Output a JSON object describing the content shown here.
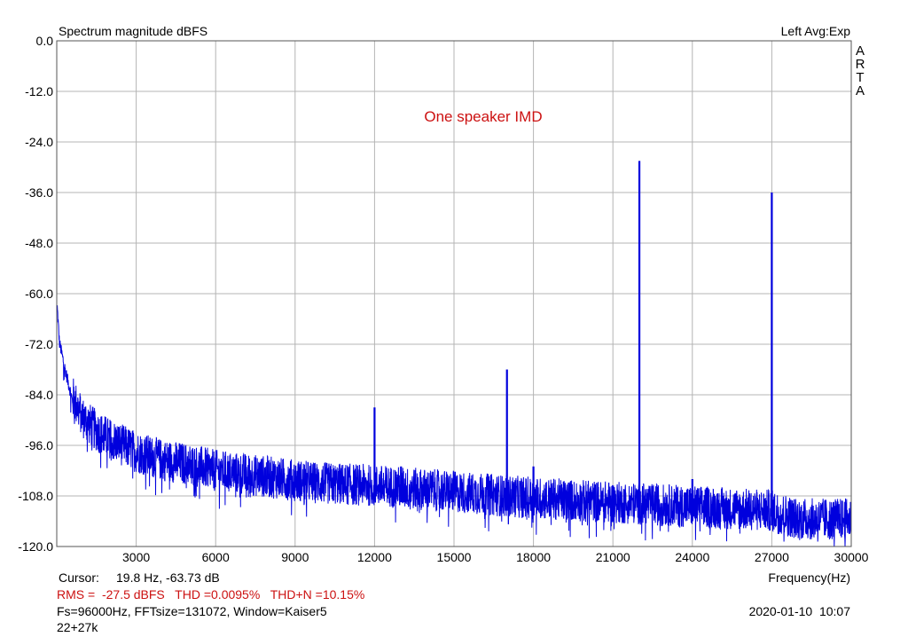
{
  "chart_data": {
    "type": "line",
    "title": "Spectrum magnitude dBFS",
    "top_right_label": "Left  Avg:Exp",
    "side_label": [
      "A",
      "R",
      "T",
      "A"
    ],
    "annotation": "One speaker IMD",
    "xlabel": "Frequency(Hz)",
    "ylabel": "",
    "xlim": [
      0,
      30000
    ],
    "ylim": [
      -120,
      0
    ],
    "x_ticks": [
      3000,
      6000,
      9000,
      12000,
      15000,
      18000,
      21000,
      24000,
      27000,
      30000
    ],
    "x_tick_labels": [
      "3000",
      "6000",
      "9000",
      "12000",
      "15000",
      "18000",
      "21000",
      "24000",
      "27000",
      "30000"
    ],
    "y_ticks": [
      0,
      -12,
      -24,
      -36,
      -48,
      -60,
      -72,
      -84,
      -96,
      -108,
      -120
    ],
    "y_tick_labels": [
      "0.0",
      "-12.0",
      "-24.0",
      "-36.0",
      "-48.0",
      "-60.0",
      "-72.0",
      "-84.0",
      "-96.0",
      "-108.0",
      "-120.0"
    ],
    "grid": true,
    "series_color": "#0000dd",
    "grid_color": "#b4b4b4",
    "noise_floor": [
      [
        20,
        -63.7
      ],
      [
        100,
        -72
      ],
      [
        300,
        -78
      ],
      [
        600,
        -86
      ],
      [
        1000,
        -91
      ],
      [
        1500,
        -94
      ],
      [
        2000,
        -96
      ],
      [
        3000,
        -99
      ],
      [
        4000,
        -101
      ],
      [
        5000,
        -102
      ],
      [
        6000,
        -103.5
      ],
      [
        8000,
        -105
      ],
      [
        10000,
        -106.5
      ],
      [
        12000,
        -107
      ],
      [
        15000,
        -108.5
      ],
      [
        18000,
        -110
      ],
      [
        21000,
        -111
      ],
      [
        24000,
        -112
      ],
      [
        27000,
        -113
      ],
      [
        28000,
        -115
      ],
      [
        30000,
        -115
      ]
    ],
    "peaks": [
      {
        "x": 12000,
        "y": -87
      },
      {
        "x": 13000,
        "y": -101
      },
      {
        "x": 17000,
        "y": -78
      },
      {
        "x": 18000,
        "y": -101
      },
      {
        "x": 22000,
        "y": -28.5
      },
      {
        "x": 24000,
        "y": -104
      },
      {
        "x": 27000,
        "y": -36
      }
    ]
  },
  "footer": {
    "cursor_label": "Cursor:",
    "cursor_value": "19.8 Hz, -63.73 dB",
    "stats_line": "RMS =  -27.5 dBFS   THD =0.0095%   THD+N =10.15%",
    "fs_line": "Fs=96000Hz, FFTsize=131072, Window=Kaiser5",
    "timestamp": "2020-01-10  10:07",
    "note": "22+27k"
  }
}
